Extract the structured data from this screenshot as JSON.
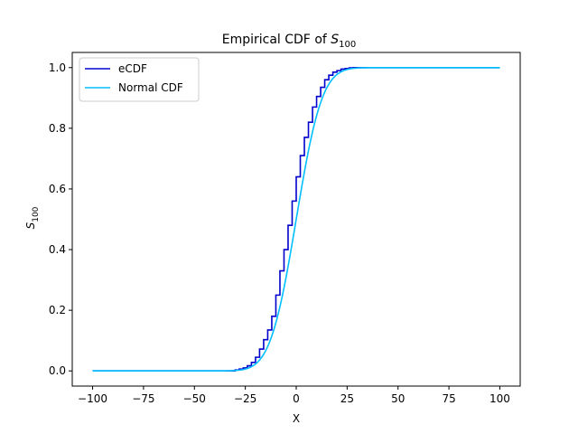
{
  "chart_data": {
    "type": "line",
    "title": "Empirical CDF of ",
    "title_math": {
      "base": "S",
      "sub": "100"
    },
    "xlabel": "X",
    "ylabel_math": {
      "base": "S",
      "sub": "100"
    },
    "xlim": [
      -110,
      110
    ],
    "ylim": [
      -0.05,
      1.05
    ],
    "xticks": [
      -100,
      -75,
      -50,
      -25,
      0,
      25,
      50,
      75,
      100
    ],
    "xtick_labels": [
      "−100",
      "−75",
      "−50",
      "−25",
      "0",
      "25",
      "50",
      "75",
      "100"
    ],
    "yticks": [
      0.0,
      0.2,
      0.4,
      0.6,
      0.8,
      1.0
    ],
    "ytick_labels": [
      "0.0",
      "0.2",
      "0.4",
      "0.6",
      "0.8",
      "1.0"
    ],
    "grid": false,
    "legend_position": "top-left",
    "series": [
      {
        "name": "eCDF",
        "color": "#0000cd",
        "style": "step",
        "x": [
          -100,
          -32,
          -30,
          -28,
          -26,
          -24,
          -22,
          -20,
          -18,
          -16,
          -14,
          -12,
          -10,
          -8,
          -6,
          -4,
          -2,
          0,
          2,
          4,
          6,
          8,
          10,
          12,
          14,
          16,
          18,
          20,
          22,
          24,
          26,
          28,
          30,
          32,
          100
        ],
        "y": [
          0.0,
          0.0,
          0.003,
          0.006,
          0.01,
          0.017,
          0.028,
          0.045,
          0.072,
          0.103,
          0.135,
          0.18,
          0.25,
          0.33,
          0.4,
          0.48,
          0.56,
          0.64,
          0.71,
          0.77,
          0.82,
          0.87,
          0.905,
          0.935,
          0.96,
          0.975,
          0.985,
          0.99,
          0.995,
          0.997,
          0.999,
          1.0,
          1.0,
          1.0,
          1.0
        ]
      },
      {
        "name": "Normal CDF",
        "color": "#00bfff",
        "style": "line",
        "mean": 0,
        "std": 10
      }
    ]
  }
}
